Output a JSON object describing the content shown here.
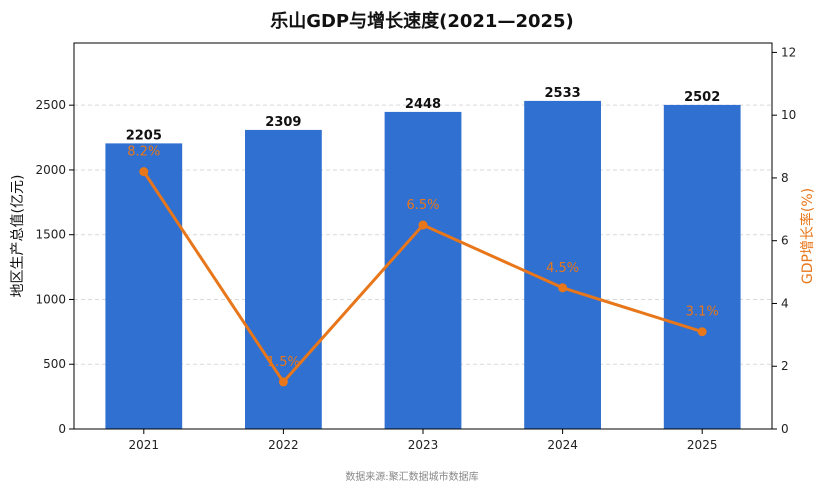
{
  "chart_data": {
    "type": "bar+line",
    "title": "乐山GDP与增长速度(2021—2025)",
    "categories": [
      "2021",
      "2022",
      "2023",
      "2024",
      "2025"
    ],
    "bar_series": {
      "values": [
        2205,
        2309,
        2448,
        2533,
        2502
      ],
      "labels": [
        "2205",
        "2309",
        "2448",
        "2533",
        "2502"
      ],
      "color": "#3070D0"
    },
    "line_series": {
      "values": [
        8.2,
        1.5,
        6.5,
        4.5,
        3.1
      ],
      "labels": [
        "8.2%",
        "1.5%",
        "6.5%",
        "4.5%",
        "3.1%"
      ],
      "color": "#E8761A"
    },
    "ylabel_left": "地区生产总值(亿元)",
    "ylabel_right": "GDP增长率(%)",
    "ylim_left": [
      0,
      2980
    ],
    "ylim_right": [
      0,
      12.3
    ],
    "yticks_left": [
      "0",
      "500",
      "1000",
      "1500",
      "2000",
      "2500"
    ],
    "yticks_right": [
      "0",
      "2",
      "4",
      "6",
      "8",
      "10",
      "12"
    ],
    "grid": "horizontal-dashed",
    "source": "数据来源:聚汇数据城市数据库"
  }
}
